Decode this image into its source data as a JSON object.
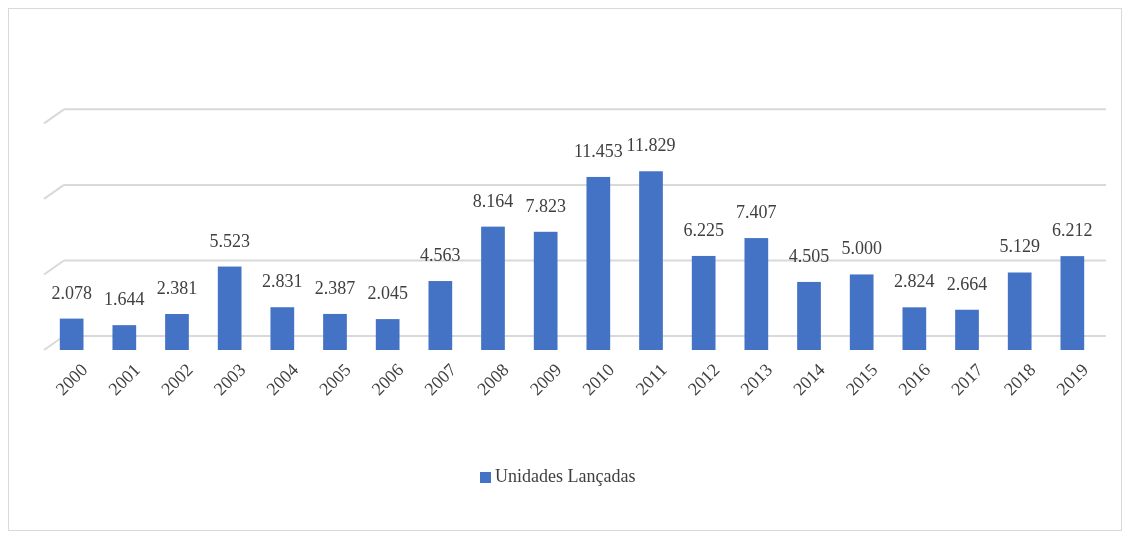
{
  "chart_data": {
    "type": "bar",
    "categories": [
      "2000",
      "2001",
      "2002",
      "2003",
      "2004",
      "2005",
      "2006",
      "2007",
      "2008",
      "2009",
      "2010",
      "2011",
      "2012",
      "2013",
      "2014",
      "2015",
      "2016",
      "2017",
      "2018",
      "2019"
    ],
    "series": [
      {
        "name": "Unidades Lançadas",
        "color": "#4472c4",
        "values": [
          2078,
          1644,
          2381,
          5523,
          2831,
          2387,
          2045,
          4563,
          8164,
          7823,
          11453,
          11829,
          6225,
          7407,
          4505,
          5000,
          2824,
          2664,
          5129,
          6212
        ],
        "value_labels": [
          "2.078",
          "1.644",
          "2.381",
          "5.523",
          "2.831",
          "2.387",
          "2.045",
          "4.563",
          "8.164",
          "7.823",
          "11.453",
          "11.829",
          "6.225",
          "7.407",
          "4.505",
          "5.000",
          "2.824",
          "2.664",
          "5.129",
          "6.212"
        ]
      }
    ],
    "grid": "y",
    "tick_labels": "x",
    "legend": "bottom"
  }
}
